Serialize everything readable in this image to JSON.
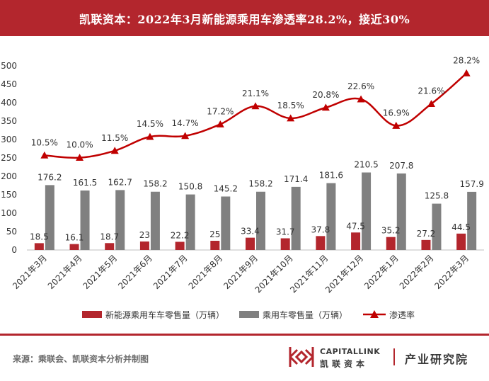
{
  "header": {
    "title": "凯联资本：2022年3月新能源乘用车渗透率28.2%，接近30%"
  },
  "footer": {
    "source": "来源：乘联会、凯联资本分析并制图",
    "brand_en": "CAPITALLINK",
    "brand_cn": "凯联资本",
    "institute": "产业研究院"
  },
  "colors": {
    "primary": "#b3262d",
    "bar_nev": "#b3262d",
    "bar_total": "#808080",
    "line": "#c00000"
  },
  "chart_data": {
    "type": "bar",
    "categories": [
      "2021年3月",
      "2021年4月",
      "2021年5月",
      "2021年6月",
      "2021年7月",
      "2021年8月",
      "2021年9月",
      "2021年10月",
      "2021年11月",
      "2021年12月",
      "2022年1月",
      "2022年2月",
      "2022年3月"
    ],
    "series": [
      {
        "name": "新能源乘用车车零售量（万辆）",
        "kind": "bar",
        "values": [
          18.5,
          16.1,
          18.7,
          23,
          22.2,
          25,
          33.4,
          31.7,
          37.8,
          47.5,
          35.2,
          27.2,
          44.5
        ]
      },
      {
        "name": "乘用车零售量（万辆）",
        "kind": "bar",
        "values": [
          176.2,
          161.5,
          162.7,
          158.2,
          150.8,
          145.2,
          158.2,
          171.4,
          181.6,
          210.5,
          207.8,
          125.8,
          157.9
        ]
      },
      {
        "name": "渗透率",
        "kind": "line",
        "values": [
          10.5,
          10.0,
          11.5,
          14.5,
          14.7,
          17.2,
          21.1,
          18.5,
          20.8,
          22.6,
          16.9,
          21.6,
          28.2
        ],
        "labels": [
          "10.5%",
          "10.0%",
          "11.5%",
          "14.5%",
          "14.7%",
          "17.2%",
          "21.1%",
          "18.5%",
          "20.8%",
          "22.6%",
          "16.9%",
          "21.6%",
          "28.2%"
        ]
      }
    ],
    "yticks": [
      0,
      50,
      100,
      150,
      200,
      250,
      300,
      350,
      400,
      450,
      500
    ],
    "ylim": [
      0,
      500
    ],
    "legend_position": "bottom",
    "grid": false
  }
}
